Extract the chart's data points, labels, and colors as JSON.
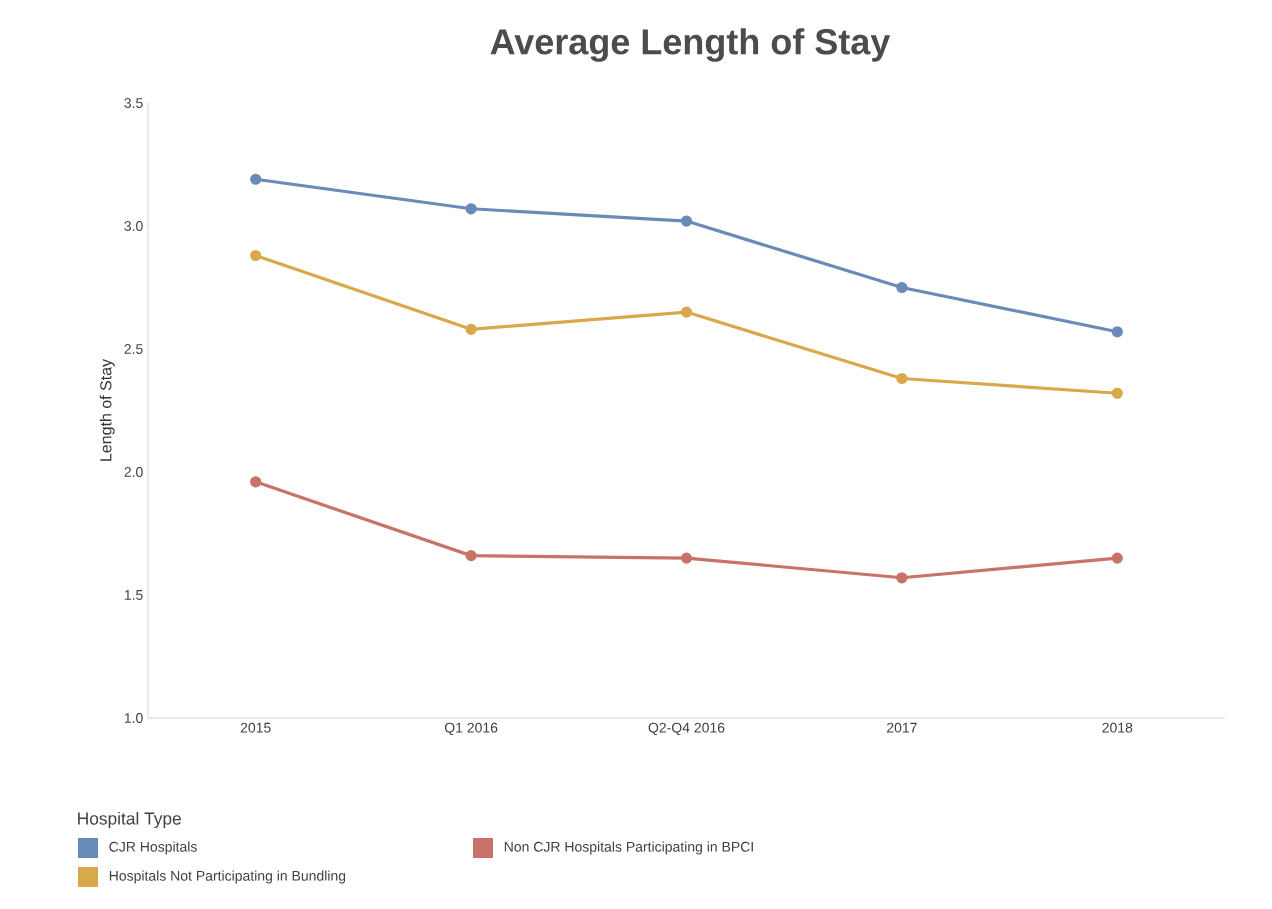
{
  "chart_data": {
    "type": "line",
    "title": "Average Length of Stay",
    "ylabel": "Length of Stay",
    "legend_title": "Hospital Type",
    "categories": [
      "2015",
      "Q1 2016",
      "Q2-Q4 2016",
      "2017",
      "2018"
    ],
    "series": [
      {
        "name": "CJR Hospitals",
        "color": "#6a8ab8",
        "values": [
          3.19,
          3.07,
          3.02,
          2.75,
          2.57
        ]
      },
      {
        "name": "Hospitals Not Participating in Bundling",
        "color": "#d9a84a",
        "values": [
          2.88,
          2.58,
          2.65,
          2.38,
          2.32
        ]
      },
      {
        "name": "Non CJR Hospitals Participating in BPCI",
        "color": "#c8736a",
        "values": [
          1.96,
          1.66,
          1.65,
          1.57,
          1.65
        ]
      }
    ],
    "ylim": [
      1.0,
      3.5
    ],
    "yticks": [
      {
        "value": 1.0,
        "label": "1.0"
      },
      1.5,
      {
        "value": 2.0,
        "label": "2.0"
      },
      2.5,
      {
        "value": 3.0,
        "label": "3.0"
      },
      3.5
    ],
    "marker": "circle",
    "line_style": "solid",
    "legend": "bottom"
  }
}
